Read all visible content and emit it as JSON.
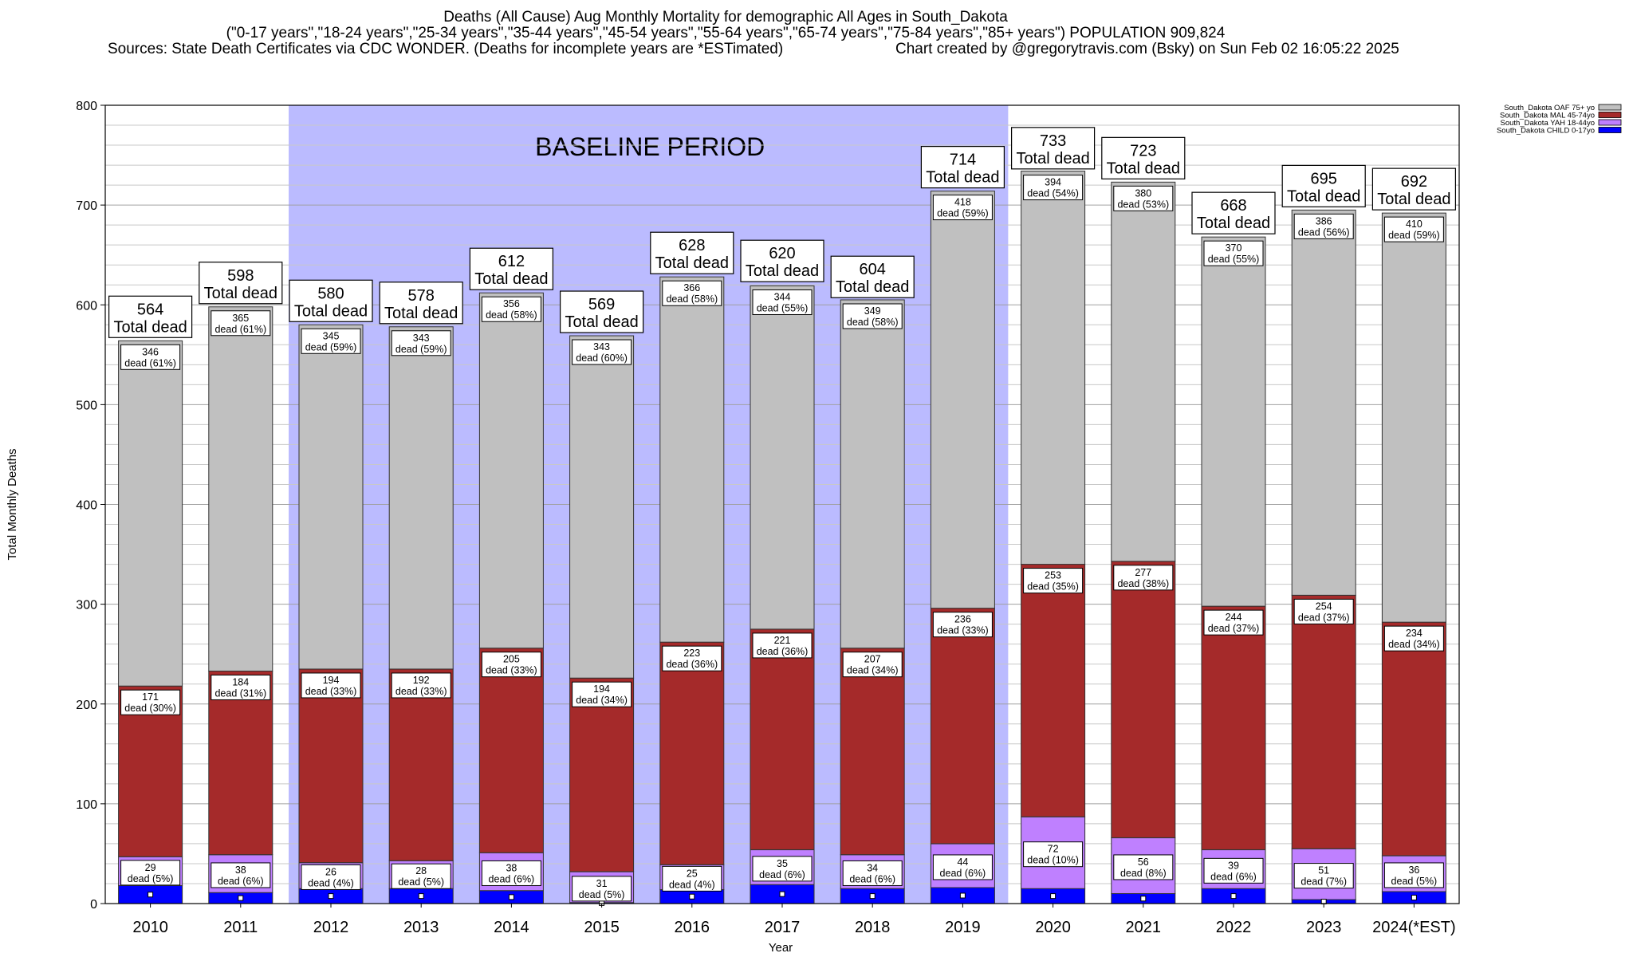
{
  "chart_data": {
    "type": "bar",
    "title": "Deaths (All Cause) Aug Monthly Mortality for demographic All Ages in South_Dakota",
    "subtitle": "(\"0-17 years\",\"18-24 years\",\"25-34 years\",\"35-44 years\",\"45-54 years\",\"55-64 years\",\"65-74 years\",\"75-84 years\",\"85+ years\") POPULATION 909,824",
    "sources": "Sources: State Death Certificates via CDC WONDER. (Deaths for incomplete years are *ESTimated)",
    "credit": "Chart created by @gregorytravis.com (Bsky) on Sun Feb 02 16:05:22 2025",
    "xlabel": "Year",
    "ylabel": "Total Monthly Deaths",
    "ylim": [
      0,
      800
    ],
    "yticks": [
      0,
      100,
      200,
      300,
      400,
      500,
      600,
      700,
      800
    ],
    "grid": true,
    "legend_position": "top-right",
    "baseline": {
      "label": "BASELINE PERIOD",
      "from": "2012",
      "to": "2019",
      "color": "#bbbbff"
    },
    "total_suffix": "Total dead",
    "categories": [
      "2010",
      "2011",
      "2012",
      "2013",
      "2014",
      "2015",
      "2016",
      "2017",
      "2018",
      "2019",
      "2020",
      "2021",
      "2022",
      "2023",
      "2024(*EST)"
    ],
    "totals": [
      564,
      598,
      580,
      578,
      612,
      569,
      628,
      620,
      604,
      714,
      733,
      723,
      668,
      695,
      692
    ],
    "series": [
      {
        "name": "South_Dakota CHILD 0-17yo",
        "color": "#0000ff",
        "values": [
          18,
          11,
          15,
          15,
          13,
          1,
          14,
          19,
          15,
          16,
          15,
          10,
          15,
          4,
          12
        ]
      },
      {
        "name": "South_Dakota YAH 18-44yo",
        "color": "#bf80ff",
        "values": [
          29,
          38,
          26,
          28,
          38,
          31,
          25,
          35,
          34,
          44,
          72,
          56,
          39,
          51,
          36
        ],
        "labels": [
          "29\ndead (5%)",
          "38\ndead (6%)",
          "26\ndead (4%)",
          "28\ndead (5%)",
          "38\ndead (6%)",
          "31\ndead (5%)",
          "25\ndead (4%)",
          "35\ndead (6%)",
          "34\ndead (6%)",
          "44\ndead (6%)",
          "72\ndead (10%)",
          "56\ndead (8%)",
          "39\ndead (6%)",
          "51\ndead (7%)",
          "36\ndead (5%)"
        ]
      },
      {
        "name": "South_Dakota MAL 45-74yo",
        "color": "#a52a2a",
        "values": [
          171,
          184,
          194,
          192,
          205,
          194,
          223,
          221,
          207,
          236,
          253,
          277,
          244,
          254,
          234
        ],
        "labels": [
          "171\ndead (30%)",
          "184\ndead (31%)",
          "194\ndead (33%)",
          "192\ndead (33%)",
          "205\ndead (33%)",
          "194\ndead (34%)",
          "223\ndead (36%)",
          "221\ndead (36%)",
          "207\ndead (34%)",
          "236\ndead (33%)",
          "253\ndead (35%)",
          "277\ndead (38%)",
          "244\ndead (37%)",
          "254\ndead (37%)",
          "234\ndead (34%)"
        ]
      },
      {
        "name": "South_Dakota OAF 75+ yo",
        "color": "#c0c0c0",
        "values": [
          346,
          365,
          345,
          343,
          356,
          343,
          366,
          344,
          349,
          418,
          394,
          380,
          370,
          386,
          410
        ],
        "labels": [
          "346\ndead (61%)",
          "365\ndead (61%)",
          "345\ndead (59%)",
          "343\ndead (59%)",
          "356\ndead (58%)",
          "343\ndead (60%)",
          "366\ndead (58%)",
          "344\ndead (55%)",
          "349\ndead (58%)",
          "418\ndead (59%)",
          "394\ndead (54%)",
          "380\ndead (53%)",
          "370\ndead (55%)",
          "386\ndead (56%)",
          "410\ndead (59%)"
        ]
      }
    ]
  }
}
